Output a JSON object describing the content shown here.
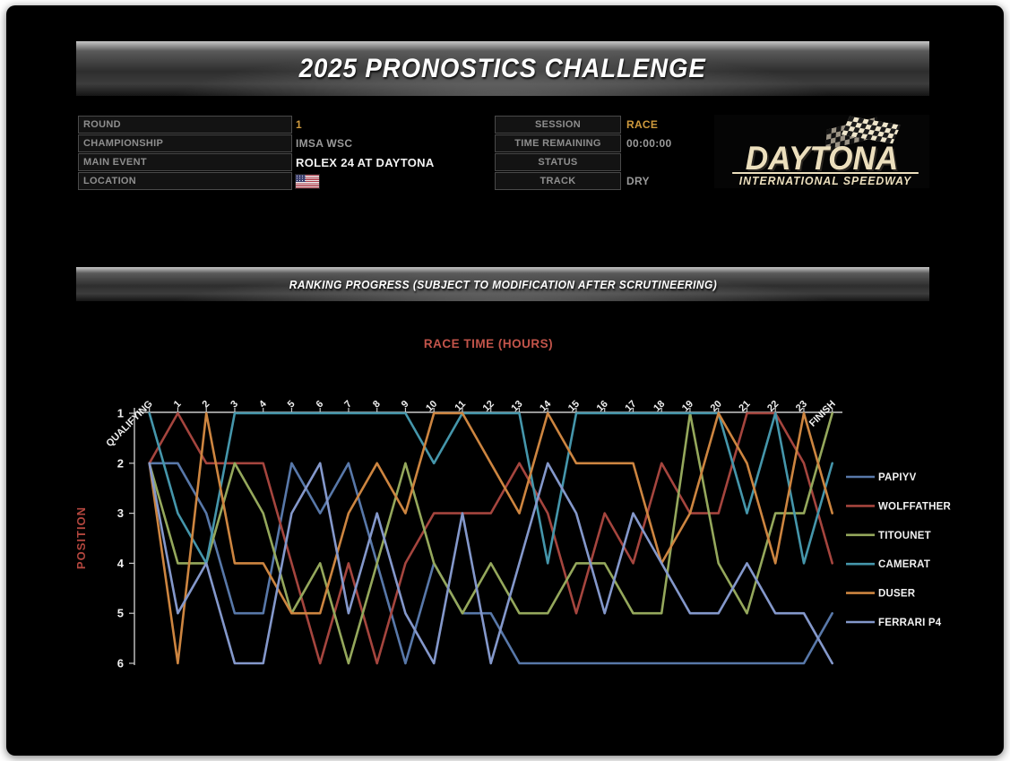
{
  "header": {
    "title": "2025 PRONOSTICS CHALLENGE"
  },
  "event_info": {
    "left": [
      {
        "label": "ROUND",
        "value": "1",
        "style": "gold",
        "align": "left"
      },
      {
        "label": "CHAMPIONSHIP",
        "value": "IMSA WSC",
        "style": "muted",
        "align": "left"
      },
      {
        "label": "MAIN EVENT",
        "value": "ROLEX 24 AT DAYTONA",
        "style": "white",
        "align": "left"
      },
      {
        "label": "LOCATION",
        "value": "",
        "icon": "usa-flag",
        "style": "icon",
        "align": "left"
      }
    ],
    "right": [
      {
        "label": "SESSION",
        "value": "RACE",
        "style": "gold",
        "align": "center"
      },
      {
        "label": "TIME REMAINING",
        "value": "00:00:00",
        "style": "muted",
        "align": "center"
      },
      {
        "label": "STATUS",
        "value": "",
        "icon": "checkered-flag",
        "style": "icon",
        "align": "center"
      },
      {
        "label": "TRACK",
        "value": "DRY",
        "style": "muted",
        "align": "center"
      }
    ]
  },
  "logo": {
    "name": "DAYTONA",
    "subtitle": "INTERNATIONAL SPEEDWAY"
  },
  "section_banner": {
    "title": "RANKING PROGRESS (SUBJECT TO MODIFICATION AFTER SCRUTINEERING)"
  },
  "chart_data": {
    "type": "line",
    "title": "RACE TIME (HOURS)",
    "title_color": "#c2544a",
    "ylabel": "POSITION",
    "ylabel_color": "#b2463e",
    "y_ticks": [
      "1",
      "2",
      "3",
      "4",
      "5",
      "6"
    ],
    "y_inverted": true,
    "ylim": [
      1,
      6
    ],
    "grid": "off",
    "legend_position": "right",
    "axis_color": "#c9c9c9",
    "tick_label_color": "#f0f0f0",
    "categories": [
      "QUALIFYING",
      "1",
      "2",
      "3",
      "4",
      "5",
      "6",
      "7",
      "8",
      "9",
      "10",
      "11",
      "12",
      "13",
      "14",
      "15",
      "16",
      "17",
      "18",
      "19",
      "20",
      "21",
      "22",
      "23",
      "FINISH"
    ],
    "series": [
      {
        "name": "PAPIYV",
        "color": "#5878a9",
        "values": [
          2,
          2,
          3,
          5,
          5,
          2,
          3,
          2,
          4,
          6,
          4,
          5,
          5,
          6,
          6,
          6,
          6,
          6,
          6,
          6,
          6,
          6,
          6,
          6,
          5
        ]
      },
      {
        "name": "WOLFFATHER",
        "color": "#a5453e",
        "values": [
          2,
          1,
          2,
          2,
          2,
          4,
          6,
          4,
          6,
          4,
          3,
          3,
          3,
          2,
          3,
          5,
          3,
          4,
          2,
          3,
          3,
          1,
          1,
          2,
          4
        ]
      },
      {
        "name": "TITOUNET",
        "color": "#95a85c",
        "values": [
          2,
          4,
          4,
          2,
          3,
          5,
          4,
          6,
          4,
          2,
          4,
          5,
          4,
          5,
          5,
          4,
          4,
          5,
          5,
          1,
          4,
          5,
          3,
          3,
          1
        ]
      },
      {
        "name": "CAMERAT",
        "color": "#4596ab",
        "values": [
          1,
          3,
          4,
          1,
          1,
          1,
          1,
          1,
          1,
          1,
          2,
          1,
          1,
          1,
          4,
          1,
          1,
          1,
          1,
          1,
          1,
          3,
          1,
          4,
          2
        ]
      },
      {
        "name": "DUSER",
        "color": "#cd8540",
        "values": [
          2,
          6,
          1,
          4,
          4,
          5,
          5,
          3,
          2,
          3,
          1,
          1,
          2,
          3,
          1,
          2,
          2,
          2,
          4,
          3,
          1,
          2,
          4,
          1,
          3
        ]
      },
      {
        "name": "FERRARI P4",
        "color": "#8498cb",
        "values": [
          2,
          5,
          4,
          6,
          6,
          3,
          2,
          5,
          3,
          5,
          6,
          3,
          6,
          4,
          2,
          3,
          5,
          3,
          4,
          5,
          5,
          4,
          5,
          5,
          6
        ]
      }
    ]
  }
}
